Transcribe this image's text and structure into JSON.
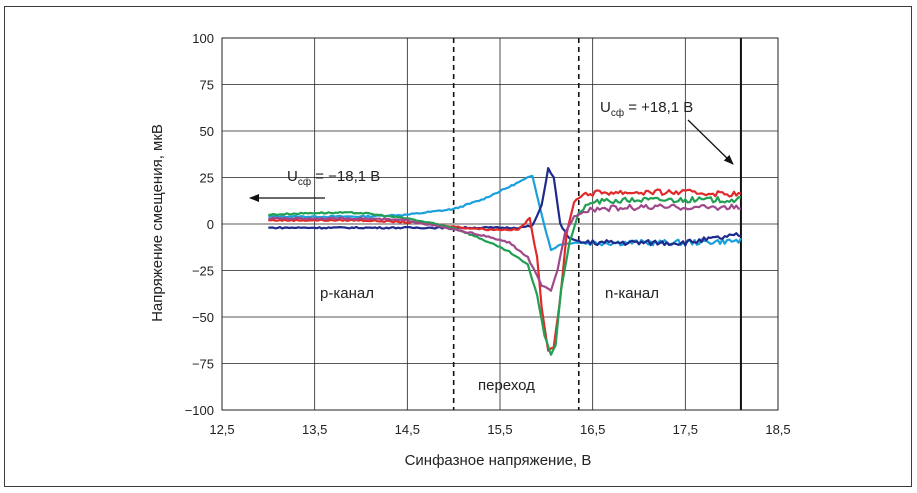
{
  "chart_data": {
    "type": "line",
    "title": "",
    "xlabel": "Синфазное напряжение, В",
    "ylabel": "Напряжение смещения, мкВ",
    "xlim": [
      12.5,
      18.5
    ],
    "ylim": [
      -100,
      100
    ],
    "x_ticks": [
      "12,5",
      "13,5",
      "14,5",
      "15,5",
      "16,5",
      "17,5",
      "18,5"
    ],
    "x_tick_values": [
      12.5,
      13.5,
      14.5,
      15.5,
      16.5,
      17.5,
      18.5
    ],
    "y_ticks": [
      "100",
      "75",
      "50",
      "25",
      "0",
      "−25",
      "−50",
      "−75",
      "−100"
    ],
    "y_tick_values": [
      100,
      75,
      50,
      25,
      0,
      -25,
      -50,
      -75,
      -100
    ],
    "grid": true,
    "region_boundaries": [
      15.0,
      16.35
    ],
    "supply_line_x": 18.1,
    "annotations": {
      "p_channel": "p-канал",
      "n_channel": "n-канал",
      "transition": "переход",
      "u_neg_main": "U",
      "u_neg_sub": "сф",
      "u_neg_value": " = −18,1 В",
      "u_pos_main": "U",
      "u_pos_sub": "сф",
      "u_pos_value": " = +18,1 В"
    },
    "series": [
      {
        "color": "#1aa0dc",
        "x": [
          13.0,
          13.5,
          14.0,
          14.5,
          15.0,
          15.3,
          15.6,
          15.85,
          15.95,
          16.05,
          16.15,
          16.3,
          16.5,
          17.0,
          17.5,
          18.1
        ],
        "y": [
          4,
          4,
          4,
          5,
          8,
          13,
          20,
          26,
          5,
          -14,
          -11,
          -10,
          -10,
          -10,
          -10,
          -9
        ]
      },
      {
        "color": "#1e2a8c",
        "x": [
          13.0,
          13.5,
          14.0,
          14.5,
          15.0,
          15.4,
          15.7,
          15.85,
          15.95,
          16.02,
          16.08,
          16.15,
          16.25,
          16.4,
          16.7,
          17.0,
          17.5,
          18.1
        ],
        "y": [
          -2,
          -2,
          -2,
          -2,
          -2,
          -2,
          -2,
          -1,
          10,
          30,
          25,
          0,
          -8,
          -10,
          -10,
          -10,
          -10,
          -6
        ]
      },
      {
        "color": "#e02a2a",
        "x": [
          13.0,
          13.5,
          14.0,
          14.5,
          14.8,
          15.1,
          15.4,
          15.7,
          15.82,
          15.9,
          15.95,
          16.02,
          16.08,
          16.15,
          16.22,
          16.3,
          16.4,
          16.6,
          17.0,
          17.5,
          18.1
        ],
        "y": [
          2,
          2,
          2,
          1,
          0,
          -2,
          -3,
          -3,
          3,
          -18,
          -45,
          -68,
          -66,
          -40,
          -5,
          12,
          16,
          17,
          17,
          17,
          16
        ]
      },
      {
        "color": "#21a054",
        "x": [
          13.0,
          13.5,
          14.0,
          14.5,
          15.0,
          15.3,
          15.6,
          15.8,
          15.9,
          15.98,
          16.05,
          16.1,
          16.16,
          16.25,
          16.35,
          16.5,
          17.0,
          17.5,
          18.1
        ],
        "y": [
          5,
          6,
          6,
          3,
          -2,
          -8,
          -15,
          -22,
          -38,
          -60,
          -70,
          -65,
          -35,
          -10,
          6,
          12,
          13,
          13,
          13
        ]
      },
      {
        "color": "#a0488c",
        "x": [
          13.0,
          13.5,
          14.0,
          14.5,
          15.0,
          15.3,
          15.6,
          15.8,
          15.95,
          16.05,
          16.12,
          16.2,
          16.3,
          16.45,
          17.0,
          17.5,
          18.1
        ],
        "y": [
          3,
          3,
          3,
          2,
          -3,
          -6,
          -10,
          -18,
          -33,
          -36,
          -25,
          -5,
          4,
          8,
          9,
          9,
          9
        ]
      }
    ]
  }
}
